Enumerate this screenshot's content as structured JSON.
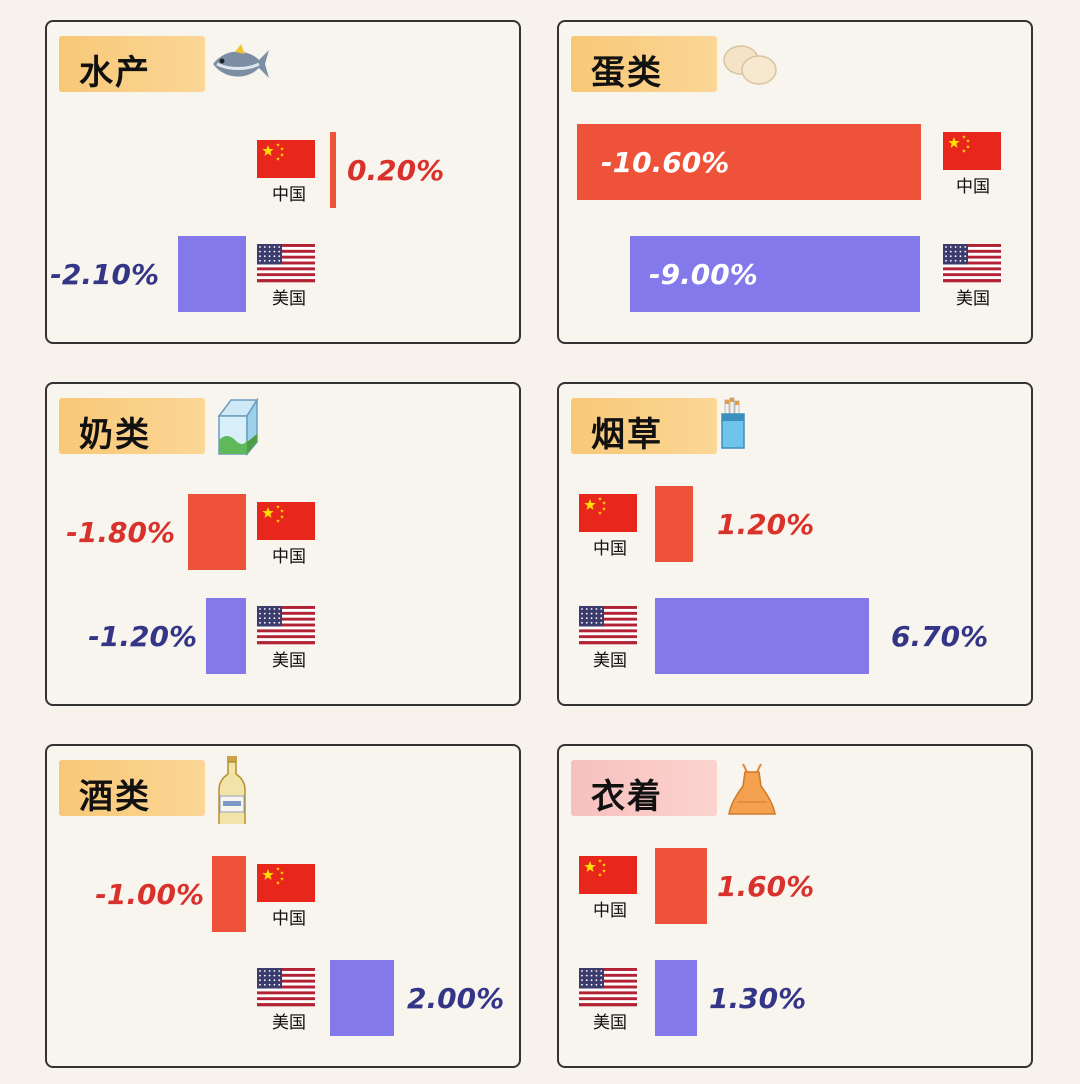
{
  "labels": {
    "china": "中国",
    "usa": "美国"
  },
  "colors": {
    "china_bar": "#ee5238",
    "usa_bar": "#8379ea",
    "china_text": "#d9312b",
    "usa_text": "#343586"
  },
  "chart_data": [
    {
      "type": "bar",
      "title": "水产",
      "icon": "fish-icon",
      "categories": [
        "中国",
        "美国"
      ],
      "values": [
        0.2,
        -2.1
      ],
      "value_labels": [
        "0.20%",
        "-2.10%"
      ]
    },
    {
      "type": "bar",
      "title": "蛋类",
      "icon": "eggs-icon",
      "categories": [
        "中国",
        "美国"
      ],
      "values": [
        -10.6,
        -9.0
      ],
      "value_labels": [
        "-10.60%",
        "-9.00%"
      ]
    },
    {
      "type": "bar",
      "title": "奶类",
      "icon": "milk-carton-icon",
      "categories": [
        "中国",
        "美国"
      ],
      "values": [
        -1.8,
        -1.2
      ],
      "value_labels": [
        "-1.80%",
        "-1.20%"
      ]
    },
    {
      "type": "bar",
      "title": "烟草",
      "icon": "cigarette-pack-icon",
      "categories": [
        "中国",
        "美国"
      ],
      "values": [
        1.2,
        6.7
      ],
      "value_labels": [
        "1.20%",
        "6.70%"
      ]
    },
    {
      "type": "bar",
      "title": "酒类",
      "icon": "beer-bottle-icon",
      "categories": [
        "中国",
        "美国"
      ],
      "values": [
        -1.0,
        2.0
      ],
      "value_labels": [
        "-1.00%",
        "2.00%"
      ]
    },
    {
      "type": "bar",
      "title": "衣着",
      "icon": "dress-icon",
      "categories": [
        "中国",
        "美国"
      ],
      "values": [
        1.6,
        1.3
      ],
      "value_labels": [
        "1.60%",
        "1.30%"
      ]
    }
  ]
}
